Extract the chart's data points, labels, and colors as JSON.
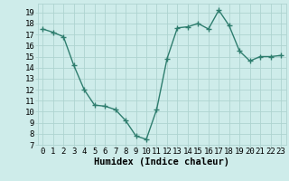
{
  "x": [
    0,
    1,
    2,
    3,
    4,
    5,
    6,
    7,
    8,
    9,
    10,
    11,
    12,
    13,
    14,
    15,
    16,
    17,
    18,
    19,
    20,
    21,
    22,
    23
  ],
  "y": [
    17.5,
    17.2,
    16.8,
    14.2,
    12.0,
    10.6,
    10.5,
    10.2,
    9.2,
    7.8,
    7.5,
    10.2,
    14.8,
    17.6,
    17.7,
    18.0,
    17.5,
    19.2,
    17.8,
    15.5,
    14.6,
    15.0,
    15.0,
    15.1
  ],
  "line_color": "#2e7d6e",
  "marker": "+",
  "markersize": 4,
  "linewidth": 1.0,
  "bg_color": "#ceecea",
  "grid_color": "#aed4d0",
  "xlabel": "Humidex (Indice chaleur)",
  "xlim": [
    -0.5,
    23.5
  ],
  "ylim": [
    7,
    19.8
  ],
  "xticks": [
    0,
    1,
    2,
    3,
    4,
    5,
    6,
    7,
    8,
    9,
    10,
    11,
    12,
    13,
    14,
    15,
    16,
    17,
    18,
    19,
    20,
    21,
    22,
    23
  ],
  "yticks": [
    7,
    8,
    9,
    10,
    11,
    12,
    13,
    14,
    15,
    16,
    17,
    18,
    19
  ],
  "xlabel_fontsize": 7.5,
  "tick_fontsize": 6.5
}
